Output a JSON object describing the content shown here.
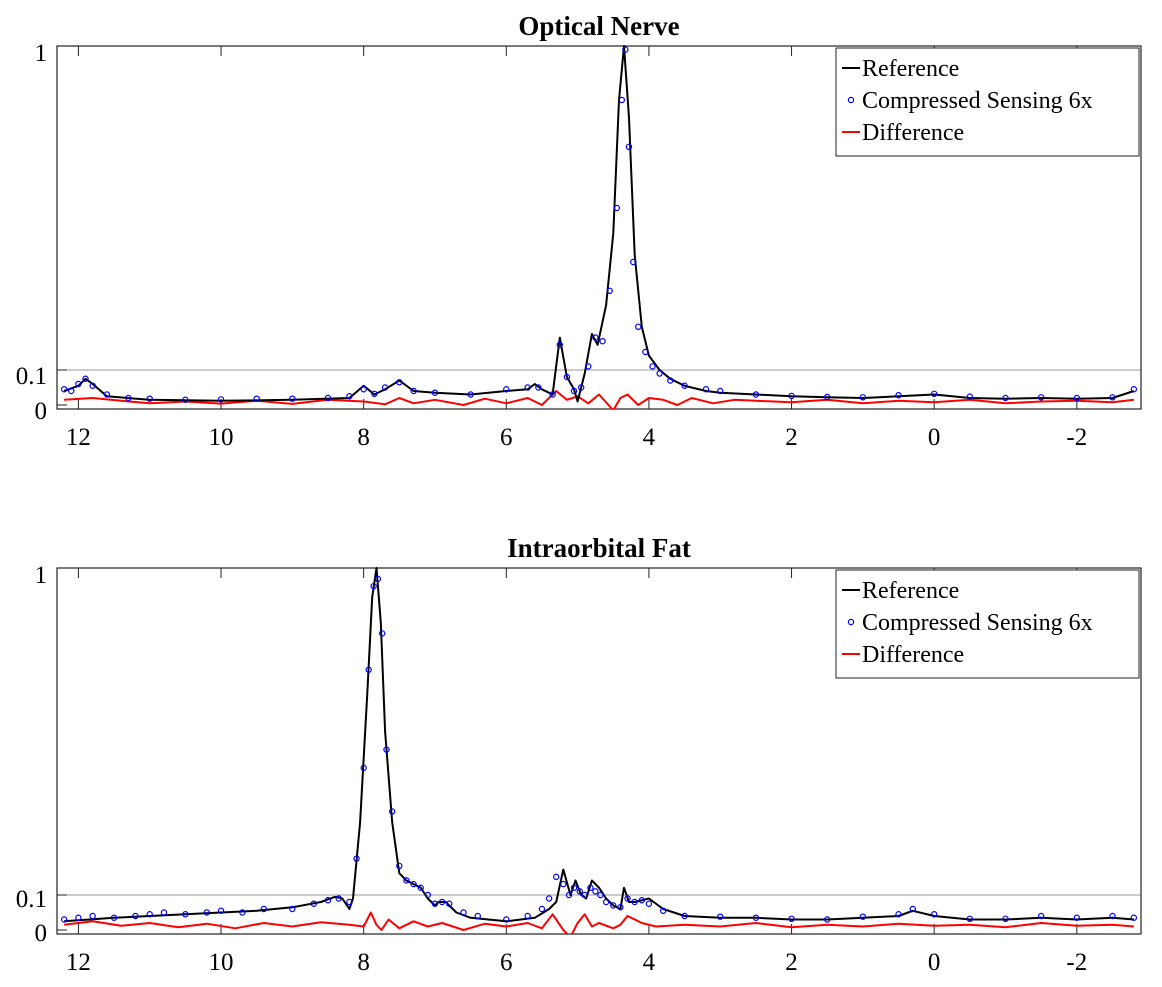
{
  "chart_data": [
    {
      "type": "line",
      "title": "Optical Nerve",
      "xlabel": "",
      "ylabel": "",
      "xlim": [
        12.3,
        -2.9
      ],
      "ylim": [
        -0.005,
        1
      ],
      "xticks": [
        12,
        10,
        8,
        6,
        4,
        2,
        0,
        -2
      ],
      "xtick_labels": [
        "12",
        "10",
        "8",
        "6",
        "4",
        "2",
        "0",
        "-2"
      ],
      "yticks": [
        0,
        0.1,
        1
      ],
      "ytick_labels": [
        "0",
        "0.1",
        "1"
      ],
      "reference_line_y": 0.1,
      "legend_position": "top-right",
      "series": [
        {
          "name": "Reference",
          "style": "line",
          "color": "#000000",
          "x": [
            12.2,
            12.0,
            11.9,
            11.8,
            11.6,
            11.0,
            10.0,
            9.0,
            8.2,
            8.0,
            7.85,
            7.7,
            7.5,
            7.3,
            7.0,
            6.5,
            6.0,
            5.7,
            5.6,
            5.5,
            5.35,
            5.25,
            5.15,
            5.05,
            5.0,
            4.9,
            4.8,
            4.72,
            4.6,
            4.5,
            4.42,
            4.35,
            4.28,
            4.2,
            4.1,
            4.0,
            3.85,
            3.7,
            3.5,
            3.2,
            3.0,
            2.5,
            2.0,
            1.5,
            1.0,
            0.5,
            0.0,
            -0.5,
            -1.0,
            -1.5,
            -2.0,
            -2.5,
            -2.8
          ],
          "y": [
            0.04,
            0.055,
            0.075,
            0.06,
            0.025,
            0.015,
            0.012,
            0.015,
            0.02,
            0.055,
            0.03,
            0.045,
            0.07,
            0.04,
            0.035,
            0.03,
            0.04,
            0.045,
            0.06,
            0.045,
            0.03,
            0.19,
            0.08,
            0.045,
            0.01,
            0.09,
            0.2,
            0.17,
            0.28,
            0.48,
            0.85,
            1.0,
            0.8,
            0.42,
            0.22,
            0.14,
            0.1,
            0.075,
            0.055,
            0.04,
            0.035,
            0.03,
            0.025,
            0.022,
            0.02,
            0.025,
            0.03,
            0.02,
            0.018,
            0.02,
            0.018,
            0.02,
            0.04
          ]
        },
        {
          "name": "Compressed Sensing 6x",
          "style": "markers",
          "color": "#0000ff",
          "x": [
            12.2,
            12.1,
            12.0,
            11.9,
            11.8,
            11.6,
            11.3,
            11.0,
            10.5,
            10.0,
            9.5,
            9.0,
            8.5,
            8.2,
            8.0,
            7.85,
            7.7,
            7.5,
            7.3,
            7.0,
            6.5,
            6.0,
            5.7,
            5.55,
            5.35,
            5.25,
            5.15,
            5.05,
            4.95,
            4.85,
            4.75,
            4.65,
            4.55,
            4.45,
            4.38,
            4.33,
            4.28,
            4.22,
            4.15,
            4.05,
            3.95,
            3.85,
            3.7,
            3.5,
            3.2,
            3.0,
            2.5,
            2.0,
            1.5,
            1.0,
            0.5,
            0.0,
            -0.5,
            -1.0,
            -1.5,
            -2.0,
            -2.5,
            -2.8
          ],
          "y": [
            0.045,
            0.04,
            0.06,
            0.075,
            0.055,
            0.03,
            0.02,
            0.018,
            0.015,
            0.016,
            0.018,
            0.018,
            0.02,
            0.025,
            0.045,
            0.032,
            0.05,
            0.065,
            0.04,
            0.035,
            0.03,
            0.045,
            0.05,
            0.05,
            0.03,
            0.17,
            0.08,
            0.04,
            0.05,
            0.11,
            0.19,
            0.18,
            0.32,
            0.55,
            0.85,
            0.99,
            0.72,
            0.4,
            0.22,
            0.15,
            0.11,
            0.09,
            0.07,
            0.055,
            0.045,
            0.04,
            0.03,
            0.026,
            0.023,
            0.022,
            0.028,
            0.032,
            0.024,
            0.02,
            0.022,
            0.02,
            0.022,
            0.045
          ]
        },
        {
          "name": "Difference",
          "style": "line",
          "color": "#ff0000",
          "x": [
            12.2,
            11.8,
            11.4,
            11.0,
            10.5,
            10.0,
            9.5,
            9.0,
            8.5,
            8.0,
            7.7,
            7.5,
            7.3,
            7.0,
            6.6,
            6.3,
            6.0,
            5.7,
            5.5,
            5.3,
            5.15,
            5.0,
            4.85,
            4.7,
            4.5,
            4.4,
            4.3,
            4.15,
            4.0,
            3.8,
            3.6,
            3.4,
            3.1,
            2.8,
            2.5,
            2.0,
            1.5,
            1.0,
            0.5,
            0.0,
            -0.5,
            -1.0,
            -1.5,
            -2.0,
            -2.5,
            -2.8
          ],
          "y": [
            0.015,
            0.02,
            0.012,
            0.005,
            0.01,
            0.004,
            0.012,
            0.003,
            0.015,
            0.01,
            0.002,
            0.02,
            0.005,
            0.015,
            0.0,
            0.018,
            0.005,
            0.02,
            0.0,
            0.04,
            0.015,
            0.025,
            0.005,
            0.03,
            -0.015,
            0.02,
            0.03,
            0.0,
            0.02,
            0.015,
            0.0,
            0.02,
            0.005,
            0.015,
            0.012,
            0.008,
            0.015,
            0.005,
            0.012,
            0.008,
            0.015,
            0.005,
            0.01,
            0.012,
            0.008,
            0.015
          ]
        }
      ]
    },
    {
      "type": "line",
      "title": "Intraorbital Fat",
      "xlabel": "",
      "ylabel": "",
      "xlim": [
        12.3,
        -2.9
      ],
      "ylim": [
        -0.005,
        1
      ],
      "xticks": [
        12,
        10,
        8,
        6,
        4,
        2,
        0,
        -2
      ],
      "xtick_labels": [
        "12",
        "10",
        "8",
        "6",
        "4",
        "2",
        "0",
        "-2"
      ],
      "yticks": [
        0,
        0.1,
        1
      ],
      "ytick_labels": [
        "0",
        "0.1",
        "1"
      ],
      "reference_line_y": 0.1,
      "legend_position": "top-right",
      "series": [
        {
          "name": "Reference",
          "style": "line",
          "color": "#000000",
          "x": [
            12.2,
            11.5,
            11.0,
            10.5,
            10.0,
            9.5,
            9.0,
            8.6,
            8.4,
            8.3,
            8.2,
            8.15,
            8.05,
            7.95,
            7.88,
            7.82,
            7.76,
            7.7,
            7.6,
            7.5,
            7.4,
            7.3,
            7.2,
            7.1,
            7.0,
            6.95,
            6.85,
            6.7,
            6.5,
            6.0,
            5.6,
            5.4,
            5.3,
            5.2,
            5.1,
            5.03,
            4.95,
            4.88,
            4.8,
            4.7,
            4.6,
            4.5,
            4.4,
            4.35,
            4.28,
            4.2,
            4.0,
            3.8,
            3.5,
            3.0,
            2.5,
            2.0,
            1.5,
            1.0,
            0.5,
            0.3,
            0.0,
            -0.5,
            -1.0,
            -1.5,
            -2.0,
            -2.5,
            -2.8
          ],
          "y": [
            0.025,
            0.035,
            0.04,
            0.045,
            0.05,
            0.055,
            0.065,
            0.08,
            0.095,
            0.09,
            0.06,
            0.09,
            0.3,
            0.65,
            0.92,
            1.0,
            0.85,
            0.55,
            0.3,
            0.16,
            0.14,
            0.13,
            0.12,
            0.09,
            0.07,
            0.08,
            0.08,
            0.05,
            0.035,
            0.025,
            0.035,
            0.06,
            0.08,
            0.17,
            0.1,
            0.14,
            0.1,
            0.09,
            0.14,
            0.12,
            0.09,
            0.07,
            0.06,
            0.12,
            0.08,
            0.08,
            0.09,
            0.06,
            0.04,
            0.035,
            0.035,
            0.03,
            0.03,
            0.035,
            0.04,
            0.055,
            0.04,
            0.03,
            0.03,
            0.035,
            0.03,
            0.035,
            0.03
          ]
        },
        {
          "name": "Compressed Sensing 6x",
          "style": "markers",
          "color": "#0000ff",
          "x": [
            12.2,
            12.0,
            11.8,
            11.5,
            11.2,
            11.0,
            10.8,
            10.5,
            10.2,
            10.0,
            9.7,
            9.4,
            9.0,
            8.7,
            8.5,
            8.35,
            8.2,
            8.1,
            8.0,
            7.93,
            7.86,
            7.8,
            7.74,
            7.68,
            7.6,
            7.5,
            7.4,
            7.3,
            7.2,
            7.1,
            7.0,
            6.9,
            6.8,
            6.6,
            6.4,
            6.0,
            5.7,
            5.5,
            5.4,
            5.3,
            5.2,
            5.12,
            5.05,
            4.97,
            4.9,
            4.82,
            4.75,
            4.68,
            4.6,
            4.5,
            4.4,
            4.3,
            4.2,
            4.1,
            4.0,
            3.8,
            3.5,
            3.0,
            2.5,
            2.0,
            1.5,
            1.0,
            0.5,
            0.3,
            0.0,
            -0.5,
            -1.0,
            -1.5,
            -2.0,
            -2.5,
            -2.8
          ],
          "y": [
            0.03,
            0.035,
            0.04,
            0.035,
            0.04,
            0.045,
            0.05,
            0.045,
            0.05,
            0.055,
            0.05,
            0.06,
            0.06,
            0.075,
            0.085,
            0.09,
            0.08,
            0.2,
            0.45,
            0.72,
            0.95,
            0.97,
            0.82,
            0.5,
            0.33,
            0.18,
            0.14,
            0.13,
            0.12,
            0.1,
            0.075,
            0.08,
            0.075,
            0.05,
            0.04,
            0.03,
            0.04,
            0.06,
            0.09,
            0.15,
            0.13,
            0.1,
            0.12,
            0.11,
            0.1,
            0.12,
            0.11,
            0.1,
            0.08,
            0.07,
            0.065,
            0.09,
            0.08,
            0.085,
            0.075,
            0.055,
            0.04,
            0.038,
            0.035,
            0.032,
            0.03,
            0.038,
            0.045,
            0.06,
            0.045,
            0.032,
            0.032,
            0.04,
            0.035,
            0.04,
            0.035
          ]
        },
        {
          "name": "Difference",
          "style": "line",
          "color": "#ff0000",
          "x": [
            12.2,
            11.8,
            11.4,
            11.0,
            10.6,
            10.2,
            9.8,
            9.4,
            9.0,
            8.6,
            8.2,
            8.0,
            7.9,
            7.82,
            7.75,
            7.65,
            7.5,
            7.3,
            7.1,
            6.9,
            6.6,
            6.3,
            6.0,
            5.7,
            5.5,
            5.35,
            5.2,
            5.1,
            5.0,
            4.9,
            4.8,
            4.7,
            4.5,
            4.4,
            4.3,
            4.1,
            3.9,
            3.5,
            3.0,
            2.5,
            2.0,
            1.5,
            1.0,
            0.5,
            0.0,
            -0.5,
            -1.0,
            -1.5,
            -2.0,
            -2.5,
            -2.8
          ],
          "y": [
            0.015,
            0.025,
            0.012,
            0.02,
            0.008,
            0.018,
            0.005,
            0.02,
            0.01,
            0.022,
            0.015,
            0.01,
            0.05,
            0.015,
            0.0,
            0.03,
            0.005,
            0.025,
            0.01,
            0.02,
            0.0,
            0.018,
            0.01,
            0.02,
            0.005,
            0.045,
            0.0,
            -0.02,
            0.02,
            0.045,
            0.01,
            0.02,
            0.005,
            0.015,
            0.04,
            0.02,
            0.01,
            0.015,
            0.01,
            0.02,
            0.008,
            0.015,
            0.01,
            0.018,
            0.012,
            0.015,
            0.008,
            0.02,
            0.012,
            0.015,
            0.01
          ]
        }
      ]
    }
  ]
}
